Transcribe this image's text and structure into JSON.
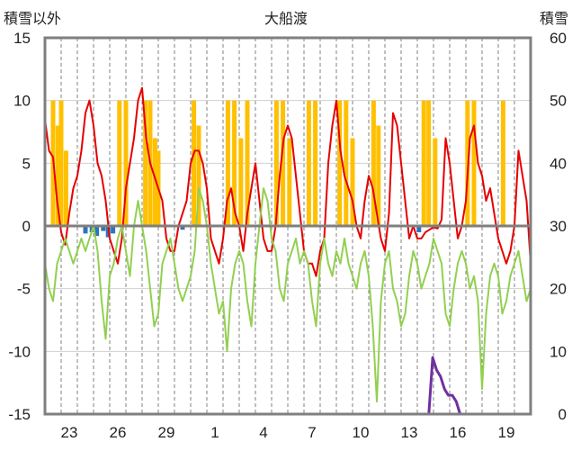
{
  "chart_data": {
    "type": "line",
    "title": "大船渡",
    "y_left_label": "積雪以外",
    "y_right_label": "積雪",
    "y_left_ticks": [
      "15",
      "10",
      "5",
      "0",
      "-5",
      "-10",
      "-15"
    ],
    "y_right_ticks": [
      "60",
      "50",
      "40",
      "30",
      "20",
      "10",
      "0"
    ],
    "ylim_left": [
      -15,
      15
    ],
    "ylim_right": [
      0,
      60
    ],
    "x_ticks": [
      "23",
      "26",
      "29",
      "1",
      "4",
      "7",
      "10",
      "13",
      "16",
      "19"
    ],
    "x_tick_day_index": [
      2,
      5,
      8,
      11,
      14,
      17,
      20,
      23,
      26,
      29
    ],
    "x_days": 30,
    "grid": true,
    "colors": {
      "red": "#e60000",
      "green": "#92d050",
      "orange": "#ffc000",
      "blue": "#2e75b6",
      "purple": "#7030a0",
      "zero_line": "#7f7f7f",
      "frame": "#7f7f7f"
    },
    "series": [
      {
        "color_key": "red",
        "axis": "left",
        "values": [
          8.5,
          6,
          5.5,
          2,
          -0.5,
          -1.5,
          1,
          3,
          4,
          6,
          9,
          10,
          8,
          5,
          4,
          2,
          -1,
          -2,
          -3,
          -1,
          3,
          5,
          7,
          10,
          11,
          7,
          5,
          4,
          3,
          2,
          -1,
          -2,
          -2,
          0,
          1,
          2,
          5,
          6,
          6,
          5,
          3,
          -1,
          -2,
          -3,
          -1,
          2,
          3,
          1,
          0,
          -2,
          1,
          3,
          5,
          2,
          -1,
          -2,
          -2,
          0,
          4,
          7,
          8,
          7,
          4,
          1,
          -2,
          -3,
          -3,
          -4,
          -2,
          -1,
          5,
          8,
          10,
          6,
          4,
          3,
          2,
          0,
          -1,
          2,
          4,
          3,
          1,
          -1,
          -2,
          1,
          9,
          8,
          5,
          2,
          -1,
          0,
          -1,
          -1,
          -0.5,
          -0.3,
          -0.1,
          -0.2,
          0.5,
          7,
          5,
          2,
          -1,
          0,
          2,
          7,
          8,
          5,
          4,
          2,
          3,
          1,
          -1,
          -2,
          -3,
          -2,
          0,
          6,
          4,
          2,
          -3
        ]
      },
      {
        "color_key": "green",
        "axis": "left",
        "values": [
          -3,
          -5,
          -6,
          -3,
          -2,
          -1,
          -2,
          -3,
          -2,
          -1,
          -2,
          -1,
          0,
          -2,
          -6,
          -9,
          -4,
          -3,
          -1,
          0,
          -2,
          -4,
          0,
          2,
          0,
          -2,
          -5,
          -8,
          -7,
          -3,
          -2,
          -1,
          -3,
          -5,
          -6,
          -5,
          -4,
          -2,
          3,
          2,
          0,
          -3,
          -5,
          -7,
          -6,
          -10,
          -5,
          -3,
          -2,
          -3,
          -6,
          -8,
          -3,
          0,
          3,
          2,
          -1,
          -2,
          -5,
          -6,
          -3,
          -2,
          -1,
          -3,
          -2,
          -3,
          -6,
          -8,
          -3,
          -1,
          -3,
          -4,
          -2,
          -3,
          -1,
          -3,
          -4,
          -5,
          -3,
          -2,
          -4,
          -8,
          -14,
          -6,
          -3,
          -2,
          -5,
          -6,
          -8,
          -7,
          -4,
          -2,
          -3,
          -5,
          -4,
          -3,
          -1,
          -2,
          -3,
          -7,
          -8,
          -5,
          -3,
          -2,
          -3,
          -5,
          -4,
          -6,
          -13,
          -7,
          -4,
          -3,
          -4,
          -7,
          -6,
          -4,
          -3,
          -2,
          -4,
          -6,
          -5
        ]
      },
      {
        "color_key": "purple",
        "axis": "right",
        "values": [
          0,
          0,
          0,
          0,
          0,
          0,
          0,
          0,
          0,
          0,
          0,
          0,
          0,
          0,
          0,
          0,
          0,
          0,
          0,
          0,
          0,
          0,
          0,
          0,
          0,
          0,
          0,
          0,
          0,
          0,
          0,
          0,
          0,
          0,
          0,
          0,
          0,
          0,
          0,
          0,
          0,
          0,
          0,
          0,
          0,
          0,
          0,
          0,
          0,
          0,
          0,
          0,
          0,
          0,
          0,
          0,
          0,
          0,
          0,
          0,
          0,
          0,
          0,
          0,
          0,
          0,
          0,
          0,
          0,
          0,
          0,
          0,
          0,
          0,
          0,
          0,
          0,
          0,
          0,
          0,
          0,
          0,
          0,
          0,
          0,
          0,
          0,
          0,
          0,
          0,
          0,
          0,
          0,
          0,
          0,
          0,
          0,
          0,
          0,
          9,
          7,
          6,
          4,
          3,
          3,
          2,
          0,
          0,
          0,
          0,
          0,
          0,
          0,
          0,
          0,
          0,
          0,
          0,
          0,
          0,
          0,
          0,
          0,
          0,
          0
        ]
      }
    ],
    "bars": [
      {
        "color_key": "orange",
        "axis": "left",
        "x_day": [
          0.5,
          0.8,
          1.0,
          1.3,
          4.6,
          5.0,
          6.2,
          6.5,
          6.8,
          7.0,
          9.2,
          9.5,
          11.3,
          11.7,
          12.1,
          12.5,
          14.3,
          14.7,
          15.1,
          16.3,
          16.7,
          18.2,
          18.6,
          19.0,
          20.3,
          20.6,
          23.4,
          23.7,
          24.1,
          26.1,
          26.5,
          28.3
        ],
        "values": [
          10,
          8,
          10,
          6,
          10,
          10,
          10,
          10,
          7,
          6,
          10,
          8,
          10,
          10,
          7,
          10,
          10,
          10,
          7,
          10,
          10,
          10,
          10,
          7,
          10,
          8,
          10,
          10,
          7,
          10,
          10,
          10
        ]
      },
      {
        "color_key": "blue",
        "axis": "left",
        "x_day": [
          2.5,
          2.9,
          3.2,
          3.6,
          3.9,
          4.2,
          8.5,
          23.1
        ],
        "values": [
          -0.6,
          -0.5,
          -0.8,
          -0.4,
          -0.9,
          -0.6,
          -0.3,
          -0.5
        ]
      }
    ]
  }
}
